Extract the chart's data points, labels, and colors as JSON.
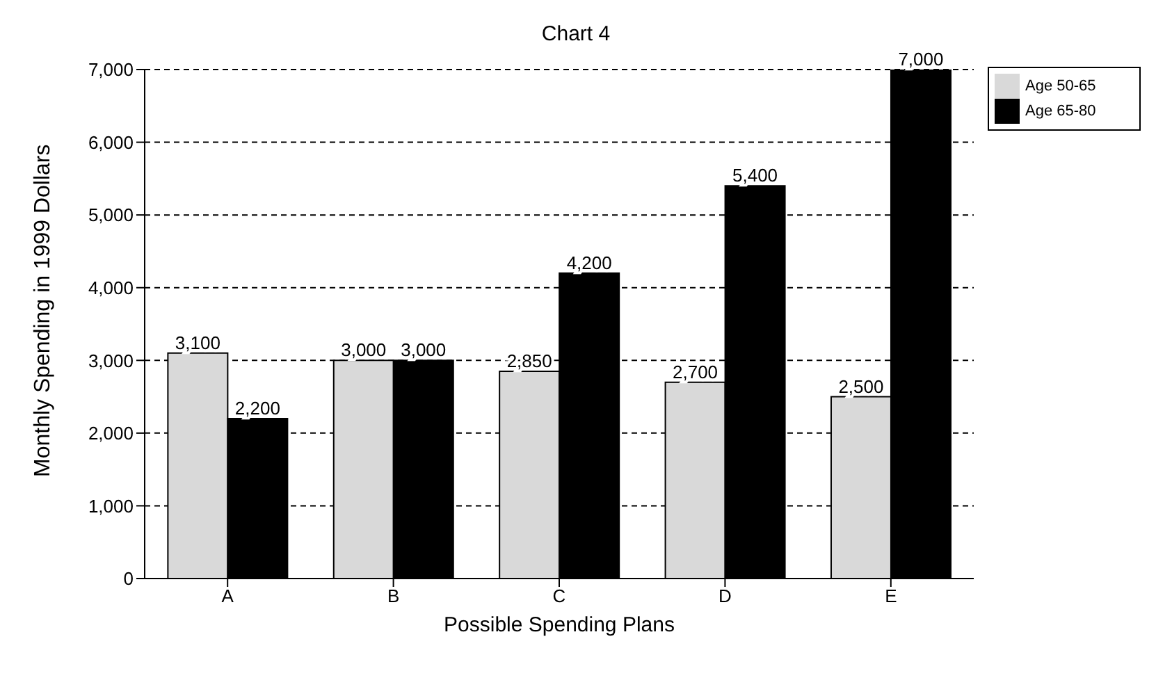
{
  "chart_data": {
    "type": "bar",
    "title": "Chart 4",
    "xlabel": "Possible Spending Plans",
    "ylabel": "Monthly Spending in 1999 Dollars",
    "categories": [
      "A",
      "B",
      "C",
      "D",
      "E"
    ],
    "series": [
      {
        "name": "Age 50-65",
        "color": "#d9d9d9",
        "values": [
          3100,
          3000,
          2850,
          2700,
          2500
        ],
        "value_labels": [
          "3,100",
          "3,000",
          "2,850",
          "2,700",
          "2,500"
        ]
      },
      {
        "name": "Age 65-80",
        "color": "#000000",
        "values": [
          2200,
          3000,
          4200,
          5400,
          7000
        ],
        "value_labels": [
          "2,200",
          "3,000",
          "4,200",
          "5,400",
          "7,000"
        ]
      }
    ],
    "ylim": [
      0,
      7000
    ],
    "yticks": [
      {
        "value": 0,
        "label": "0"
      },
      {
        "value": 1000,
        "label": "1,000"
      },
      {
        "value": 2000,
        "label": "2,000"
      },
      {
        "value": 3000,
        "label": "3,000"
      },
      {
        "value": 4000,
        "label": "4,000"
      },
      {
        "value": 5000,
        "label": "5,000"
      },
      {
        "value": 6000,
        "label": "6,000"
      },
      {
        "value": 7000,
        "label": "7,000"
      }
    ],
    "grid": "y",
    "legend": "top right"
  }
}
